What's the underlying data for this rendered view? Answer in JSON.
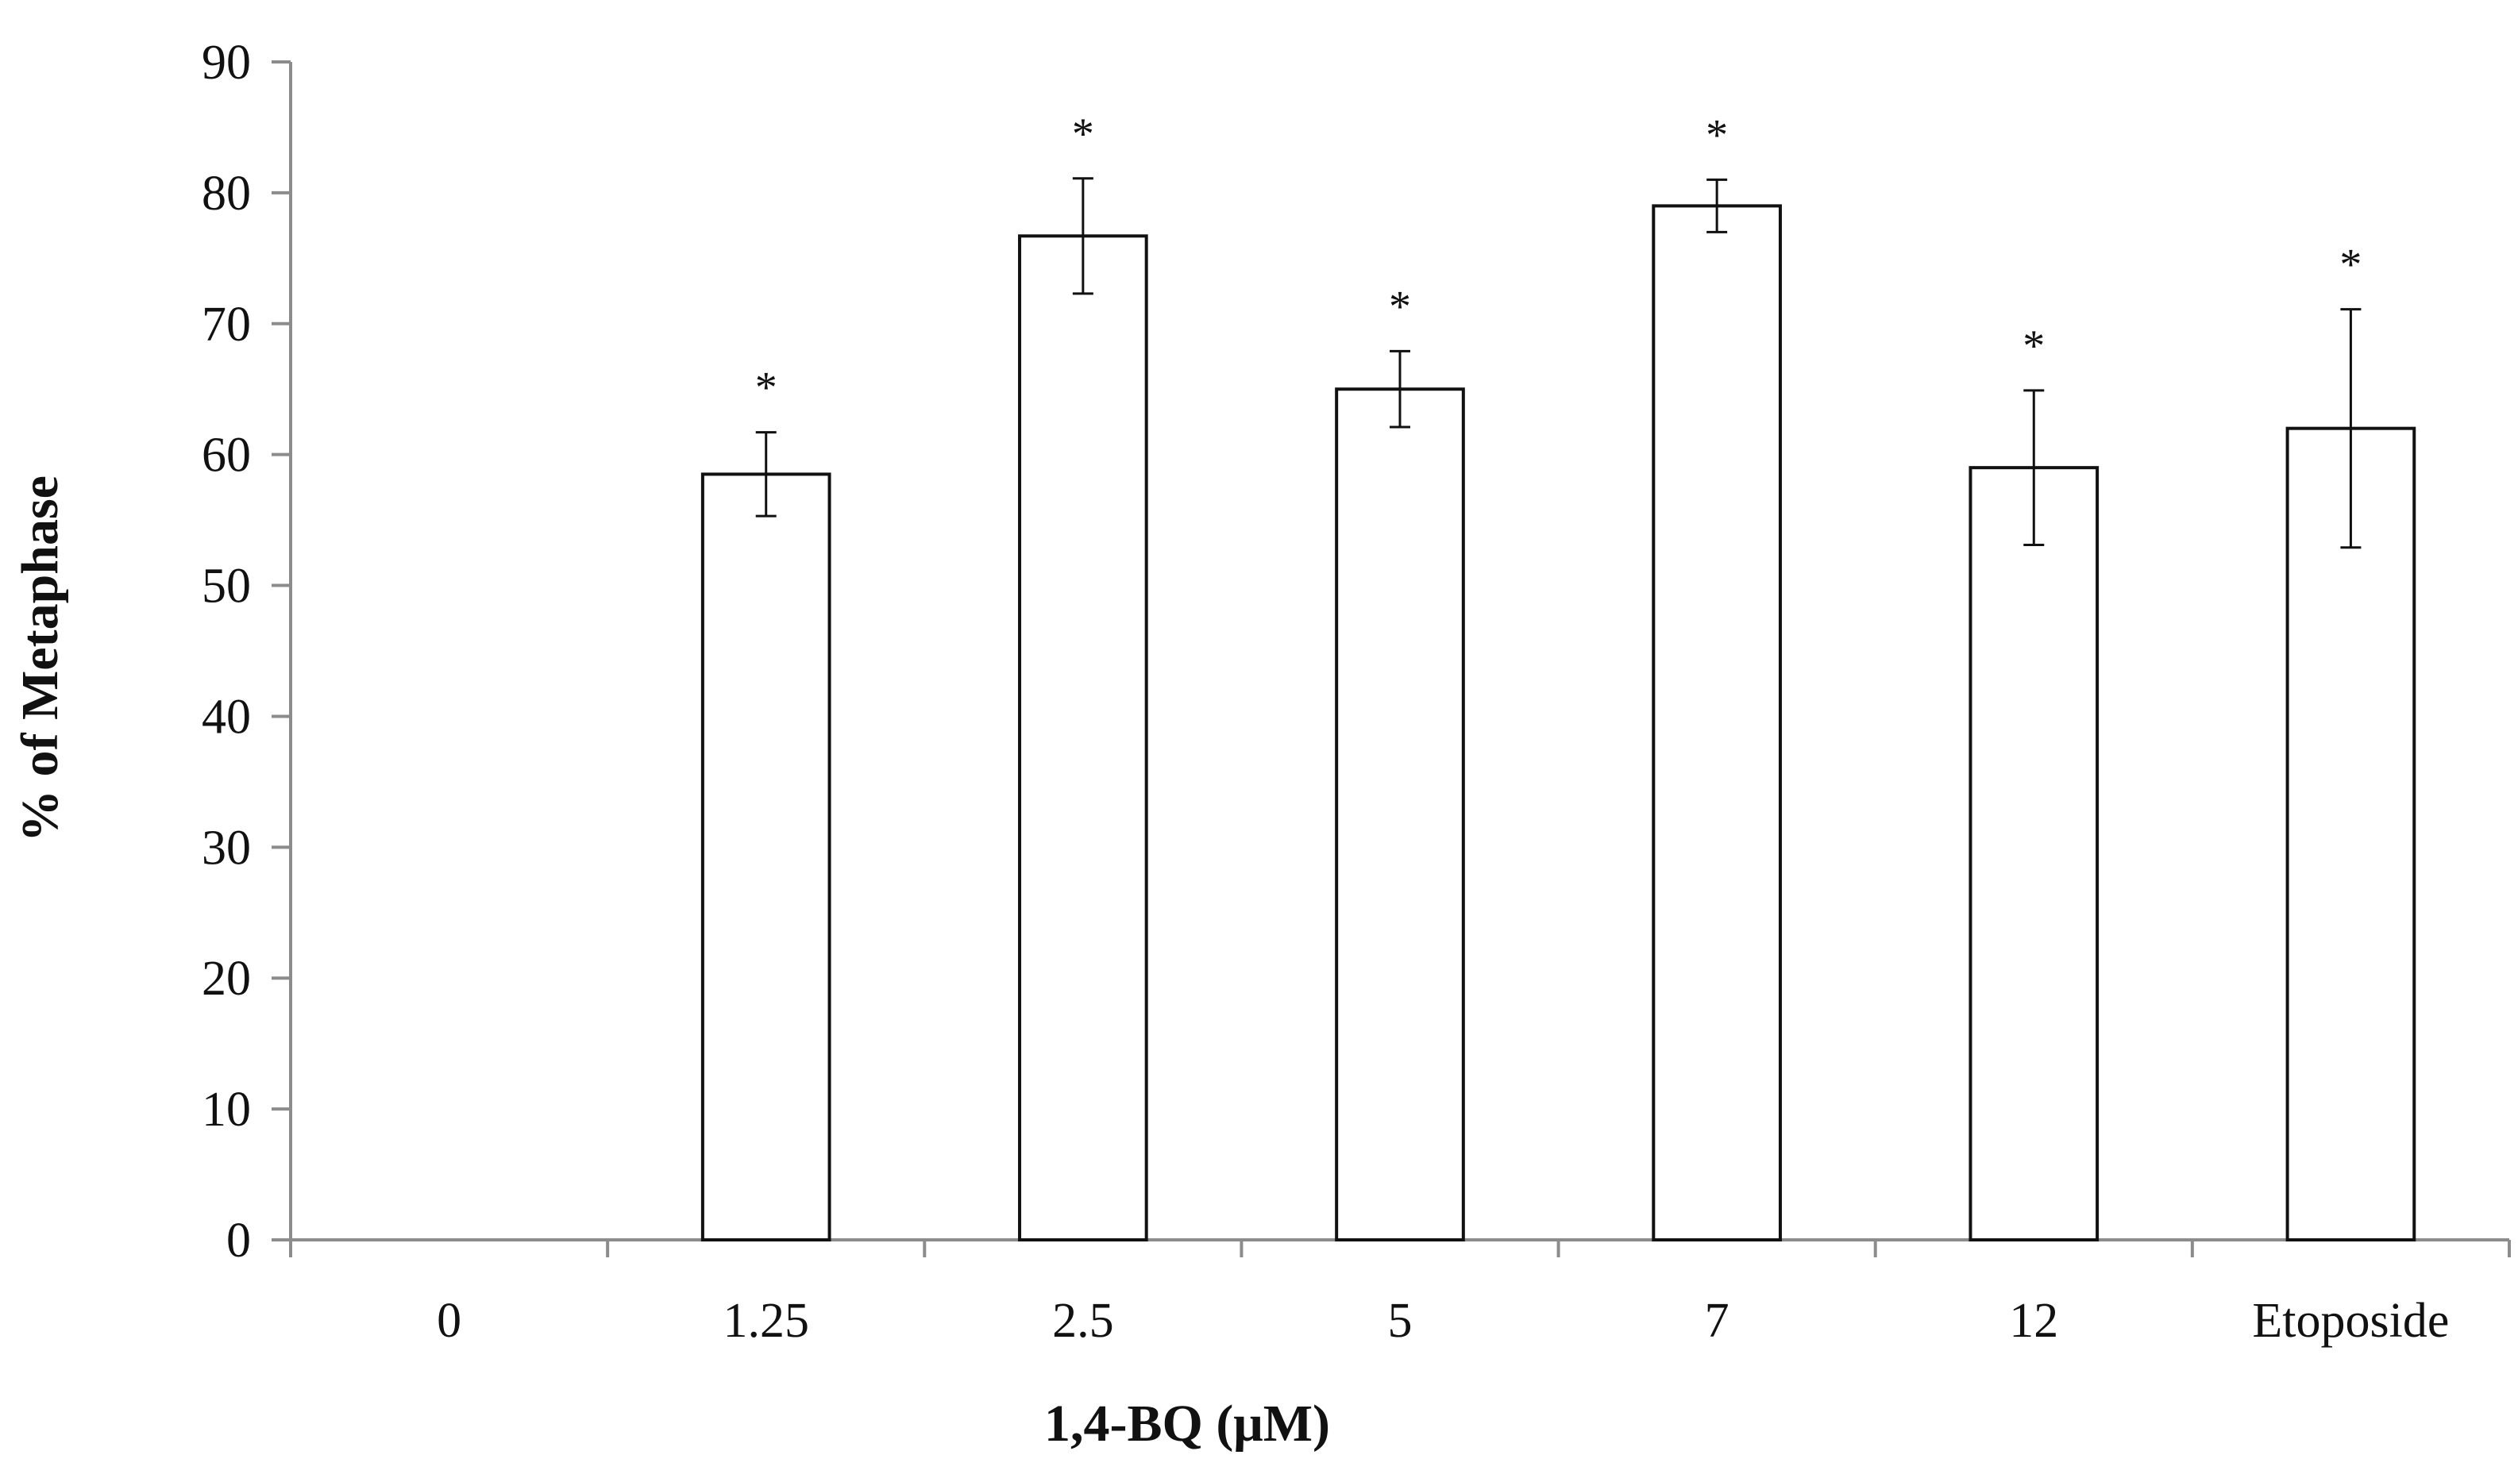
{
  "chart_data": {
    "type": "bar",
    "categories": [
      "0",
      "1.25",
      "2.5",
      "5",
      "7",
      "12",
      "Etoposide"
    ],
    "values": [
      0,
      58.5,
      76.7,
      65.0,
      79.0,
      59.0,
      62.0
    ],
    "error": [
      0,
      3.2,
      4.4,
      2.9,
      2.0,
      5.9,
      9.1
    ],
    "significance": [
      "",
      "*",
      "*",
      "*",
      "*",
      "*",
      "*"
    ],
    "xlabel": "1,4-BQ (μM)",
    "ylabel": "% of Metaphase",
    "ylim": [
      0,
      90
    ],
    "yticks": [
      0,
      10,
      20,
      30,
      40,
      50,
      60,
      70,
      80,
      90
    ],
    "grid": false,
    "legend": "none",
    "colors": {
      "bar_fill": "#ffffff",
      "bar_stroke": "#111111",
      "axis": "#8c8c8c"
    }
  }
}
